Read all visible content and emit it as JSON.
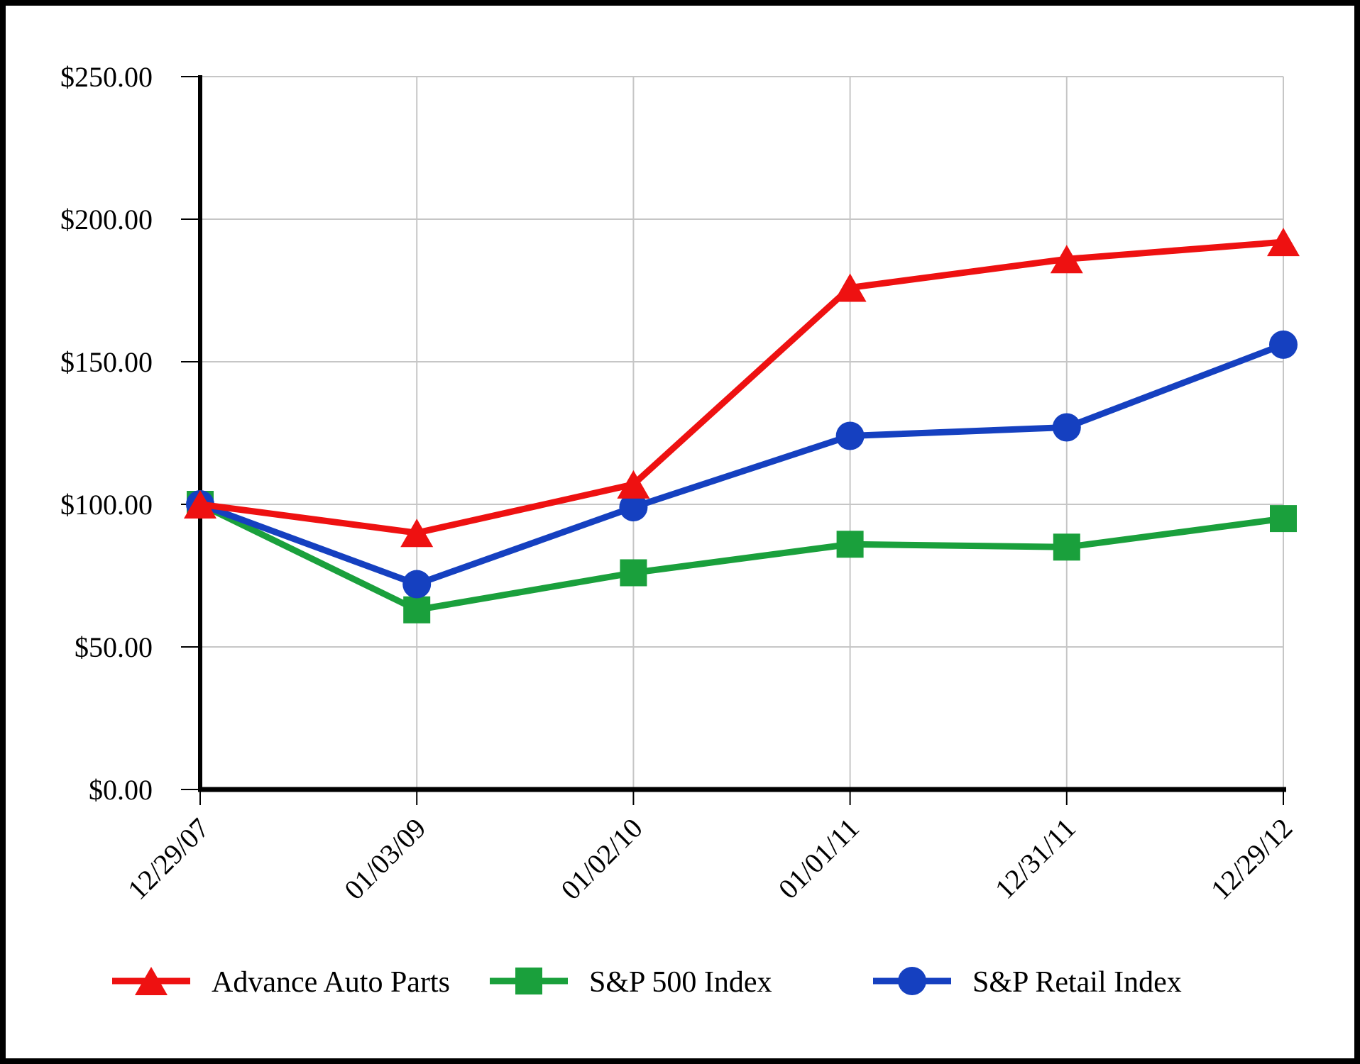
{
  "page": {
    "background": "#ffffff",
    "border_color": "#000000"
  },
  "chart_data": {
    "type": "line",
    "title": "",
    "categories": [
      "12/29/07",
      "01/03/09",
      "01/02/10",
      "01/01/11",
      "12/31/11",
      "12/29/12"
    ],
    "series": [
      {
        "name": "Advance Auto Parts",
        "marker": "triangle",
        "color": "#ee1111",
        "values": [
          100,
          90,
          107,
          176,
          186,
          192
        ]
      },
      {
        "name": "S&P 500 Index",
        "marker": "square",
        "color": "#1aa03c",
        "values": [
          100,
          63,
          76,
          86,
          85,
          95
        ]
      },
      {
        "name": "S&P Retail Index",
        "marker": "circle",
        "color": "#1540c0",
        "values": [
          100,
          72,
          99,
          124,
          127,
          156
        ]
      }
    ],
    "y_axis": {
      "min": 0,
      "max": 250,
      "step": 50,
      "tick_labels": [
        "$0.00",
        "$50.00",
        "$100.00",
        "$150.00",
        "$200.00",
        "$250.00"
      ]
    },
    "x_axis": {
      "tick_count": 6
    },
    "grid": "on",
    "legend_position": "bottom",
    "colors": {
      "gridline": "#c6c6c6",
      "axis": "#000000",
      "text": "#000000"
    }
  }
}
